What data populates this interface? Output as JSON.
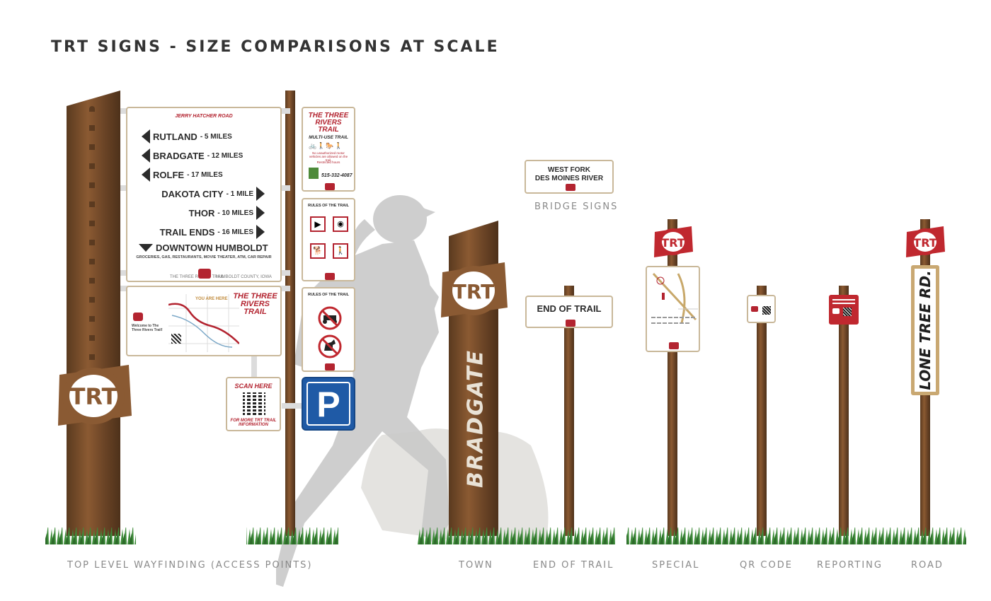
{
  "title": "TRT SIGNS - SIZE COMPARISONS AT SCALE",
  "captions": {
    "top_level": "TOP LEVEL WAYFINDING (ACCESS POINTS)",
    "town": "TOWN",
    "end_of_trail": "END OF TRAIL",
    "special": "SPECIAL",
    "qr_code": "QR CODE",
    "reporting": "REPORTING",
    "road": "ROAD",
    "bridge": "BRIDGE SIGNS"
  },
  "wayfinding": {
    "road_name": "JERRY HATCHER ROAD",
    "rows": [
      {
        "dir": "left",
        "name": "RUTLAND",
        "dist": "- 5 MILES"
      },
      {
        "dir": "left",
        "name": "BRADGATE",
        "dist": "- 12 MILES"
      },
      {
        "dir": "left",
        "name": "ROLFE",
        "dist": "- 17 MILES"
      },
      {
        "dir": "right",
        "name": "DAKOTA CITY",
        "dist": "- 1 MILE"
      },
      {
        "dir": "right",
        "name": "THOR",
        "dist": "- 10 MILES"
      },
      {
        "dir": "right",
        "name": "TRAIL ENDS",
        "dist": "- 16 MILES"
      }
    ],
    "downtown": "DOWNTOWN HUMBOLDT",
    "downtown_sub": "GROCERIES, GAS, RESTAURANTS, MOVIE THEATER, ATM, CAR REPAIR",
    "footer_left": "THE THREE RIVERS TRAIL",
    "footer_right": "HUMBOLDT COUNTY, IOWA"
  },
  "map_sign": {
    "you_are_here": "YOU ARE HERE",
    "brand": "THE THREE RIVERS TRAIL",
    "welcome": "Welcome to The Three Rivers Trail!"
  },
  "scan_sign": {
    "top": "SCAN HERE",
    "bottom": "FOR MORE TRT TRAIL INFORMATION"
  },
  "multi_use": {
    "brand": "THE THREE RIVERS TRAIL",
    "heading": "MULTI-USE TRAIL",
    "warning": "No unauthorized motor vehicles are allowed on the trail.",
    "note": "Restricted hours",
    "phone": "515-332-4087"
  },
  "rules1": {
    "heading": "RULES OF THE TRAIL"
  },
  "rules2": {
    "heading": "RULES OF THE TRAIL"
  },
  "parking": "P",
  "town_sign": {
    "logo": "TRT",
    "name": "BRADGATE"
  },
  "bridge_sign": {
    "line1": "WEST FORK",
    "line2": "DES MOINES RIVER"
  },
  "end_sign": "END OF TRAIL",
  "road_sign": {
    "logo": "TRT",
    "name": "LONE TREE RD."
  },
  "logo_text": "TRT",
  "colors": {
    "accent_red": "#b32430",
    "post_brown": "#7a4e2b",
    "frame_tan": "#c9b89a",
    "parking_blue": "#1f5aa6"
  }
}
